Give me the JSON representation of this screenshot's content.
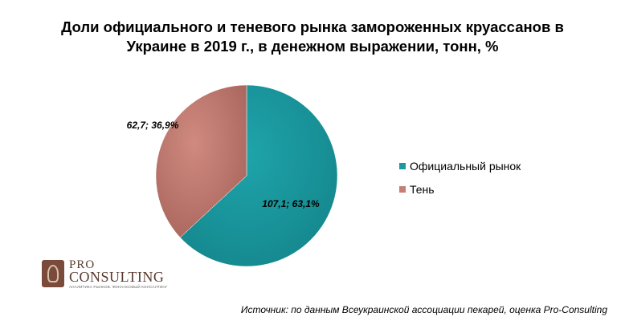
{
  "title_lines": [
    "Доли официального и теневого рынка замороженных круассанов в",
    "Украине в 2019 г., в денежном выражении, тонн, %"
  ],
  "chart_data": {
    "type": "pie",
    "title": "Доли официального и теневого рынка замороженных круассанов в Украине в 2019 г., в денежном выражении, тонн, %",
    "categories": [
      "Официальный  рынок",
      "Тень"
    ],
    "values": [
      107.1,
      62.7
    ],
    "percents": [
      63.1,
      36.9
    ],
    "data_labels": [
      "107,1; 63,1%",
      "62,7; 36,9%"
    ],
    "colors": [
      "#1a9aa0",
      "#c47e74"
    ],
    "legend_position": "right"
  },
  "legend": [
    {
      "label": "Официальный  рынок",
      "color": "#1a9aa0"
    },
    {
      "label": "Тень",
      "color": "#c47e74"
    }
  ],
  "logo": {
    "pro": "PRO",
    "consulting": "CONSULTING",
    "tagline": "АНАЛИТИКА РЫНКОВ. ФИНАНСОВЫЙ КОНСАЛТИНГ"
  },
  "source": "Источник: по данным Всеукраинской ассоциации пекарей, оценка Pro-Consulting"
}
